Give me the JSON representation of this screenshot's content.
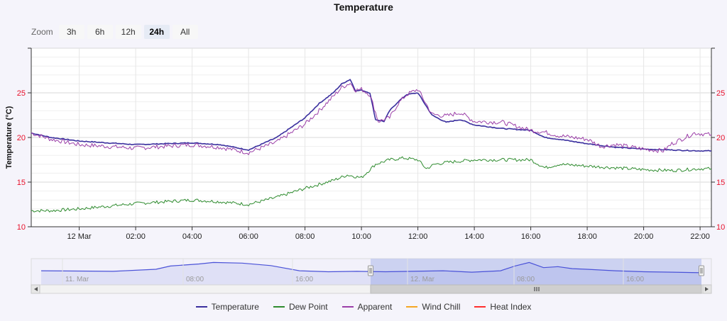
{
  "colors": {
    "background": "#f5f4fb",
    "temperature": "#3a2f9e",
    "dew_point": "#2e8b2e",
    "apparent": "#9b3fa8",
    "wind_chill": "#f5a623",
    "heat_index": "#ff2e2e",
    "navigator_mask": "#c6cdee"
  },
  "zoom": {
    "label": "Zoom",
    "buttons": [
      {
        "label": "3h",
        "active": false
      },
      {
        "label": "6h",
        "active": false
      },
      {
        "label": "12h",
        "active": false
      },
      {
        "label": "24h",
        "active": true
      },
      {
        "label": "All",
        "active": false
      }
    ]
  },
  "chart_data": {
    "type": "line",
    "title": "Temperature",
    "ylabel": "Temperature (°C)",
    "xlabel": "",
    "ylim": [
      10,
      30
    ],
    "y_ticks": [
      10,
      15,
      20,
      25
    ],
    "x_ticks": [
      "12 Mar",
      "02:00",
      "04:00",
      "06:00",
      "08:00",
      "10:00",
      "12:00",
      "14:00",
      "16:00",
      "18:00",
      "20:00",
      "22:00"
    ],
    "x_tick_hours": [
      0,
      2,
      4,
      6,
      8,
      10,
      12,
      14,
      16,
      18,
      20,
      22
    ],
    "xlim_hours": [
      -1.7,
      22.4
    ],
    "grid": true,
    "legend_position": "bottom-center",
    "series": [
      {
        "name": "Temperature",
        "x": [
          -1.7,
          -1.0,
          0,
          1.0,
          2.0,
          3.0,
          4.0,
          5.0,
          6.0,
          7.0,
          8.0,
          8.5,
          9.0,
          9.3,
          9.6,
          9.8,
          10.0,
          10.3,
          10.5,
          10.8,
          11.0,
          11.3,
          11.6,
          12.0,
          12.5,
          13.0,
          13.5,
          14.0,
          15.0,
          16.0,
          16.5,
          17.0,
          18.0,
          19.0,
          20.0,
          21.0,
          22.0,
          22.4
        ],
        "values": [
          20.5,
          20.0,
          19.6,
          19.4,
          19.2,
          19.3,
          19.4,
          19.2,
          18.6,
          20.0,
          22.2,
          23.8,
          25.0,
          26.0,
          26.5,
          25.2,
          25.3,
          25.0,
          22.0,
          21.8,
          23.0,
          24.0,
          24.8,
          25.0,
          22.5,
          21.7,
          22.0,
          21.4,
          21.0,
          20.8,
          20.0,
          19.8,
          19.3,
          18.9,
          18.7,
          18.6,
          18.5,
          18.5
        ]
      },
      {
        "name": "Dew Point",
        "x": [
          -1.7,
          -1.0,
          0,
          1.0,
          2.0,
          3.0,
          4.0,
          5.0,
          6.0,
          7.0,
          8.0,
          9.0,
          9.5,
          10.0,
          10.5,
          11.0,
          11.5,
          12.0,
          12.3,
          12.6,
          13.0,
          14.0,
          15.0,
          16.0,
          16.5,
          17.0,
          18.0,
          19.0,
          20.0,
          21.0,
          22.0,
          22.4
        ],
        "values": [
          11.8,
          11.8,
          12.0,
          12.3,
          12.6,
          12.8,
          13.0,
          12.8,
          12.5,
          13.3,
          14.3,
          15.2,
          15.8,
          15.5,
          17.0,
          17.5,
          17.7,
          17.5,
          16.5,
          17.0,
          17.2,
          17.5,
          17.5,
          17.5,
          16.6,
          17.0,
          16.8,
          16.6,
          16.4,
          16.3,
          16.5,
          16.5
        ]
      },
      {
        "name": "Apparent",
        "x": [
          -1.7,
          -1.0,
          0,
          1.0,
          2.0,
          3.0,
          4.0,
          5.0,
          6.0,
          7.0,
          8.0,
          8.5,
          9.0,
          9.3,
          9.6,
          9.8,
          10.0,
          10.3,
          10.6,
          11.0,
          11.3,
          11.6,
          12.0,
          12.5,
          13.0,
          13.5,
          14.0,
          15.0,
          16.0,
          16.5,
          17.0,
          18.0,
          18.5,
          19.0,
          20.0,
          20.7,
          21.0,
          21.8,
          22.4
        ],
        "values": [
          20.5,
          19.8,
          19.2,
          19.0,
          18.8,
          19.0,
          19.2,
          18.9,
          18.3,
          19.5,
          21.5,
          23.0,
          24.6,
          25.6,
          26.1,
          25.3,
          25.4,
          24.8,
          21.8,
          22.2,
          23.8,
          24.8,
          25.4,
          22.6,
          22.4,
          22.8,
          21.8,
          21.7,
          20.8,
          20.6,
          20.2,
          19.8,
          19.0,
          19.2,
          18.7,
          18.5,
          19.3,
          20.5,
          20.3
        ]
      },
      {
        "name": "Wind Chill",
        "x": [],
        "values": []
      },
      {
        "name": "Heat Index",
        "x": [],
        "values": []
      }
    ],
    "navigator": {
      "x_labels": [
        "11. Mar",
        "08:00",
        "16:00",
        "12. Mar",
        "08:00",
        "16:00"
      ]
    }
  }
}
